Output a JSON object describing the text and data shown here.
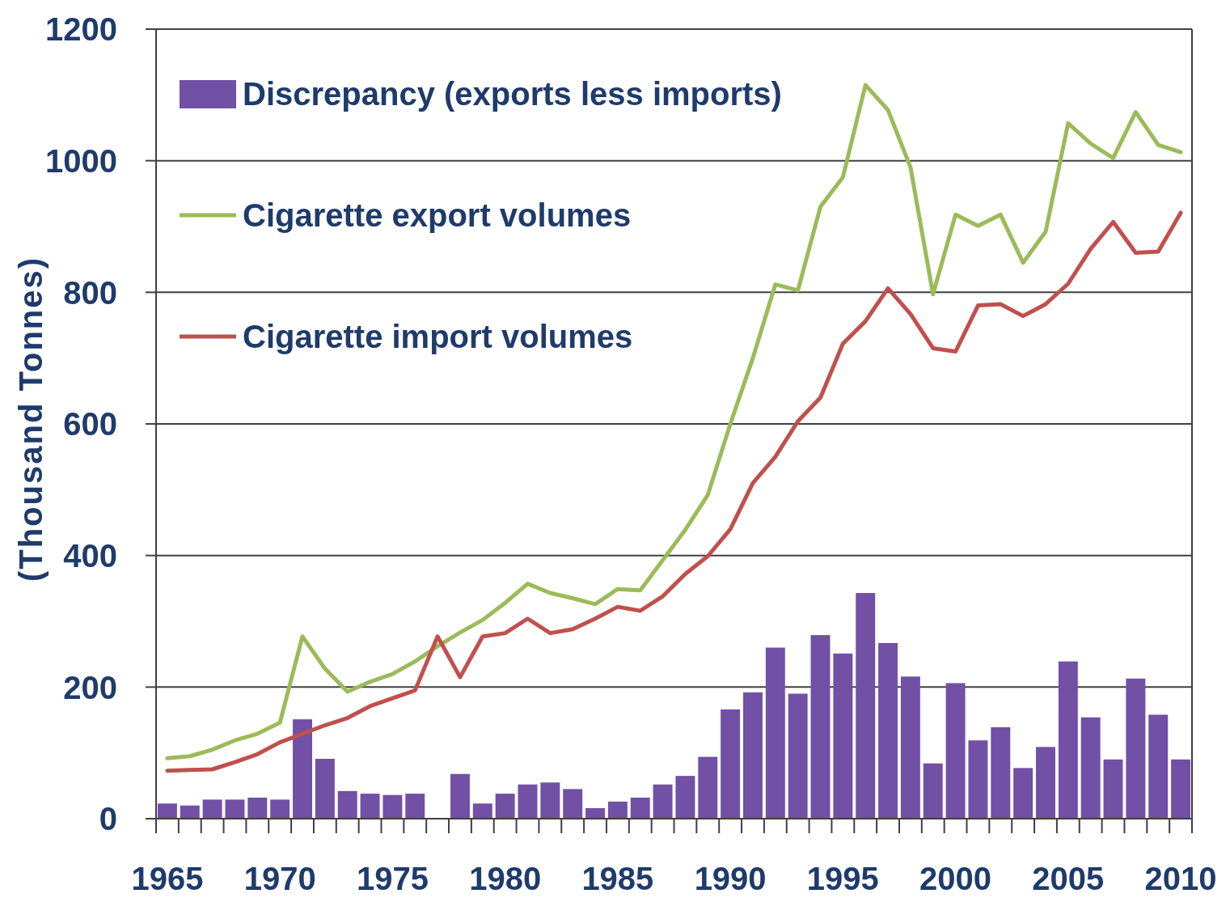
{
  "chart_data": {
    "type": "bar",
    "ylabel": "(Thousand Tonnes)",
    "categories": [
      "1965",
      null,
      null,
      null,
      null,
      "1970",
      null,
      null,
      null,
      null,
      "1975",
      null,
      null,
      null,
      null,
      "1980",
      null,
      null,
      null,
      null,
      "1985",
      null,
      null,
      null,
      null,
      "1990",
      null,
      null,
      null,
      null,
      "1995",
      null,
      null,
      null,
      null,
      "2000",
      null,
      null,
      null,
      null,
      "2005",
      null,
      null,
      null,
      null,
      "2010"
    ],
    "series": [
      {
        "name": "Discrepancy (exports less imports)",
        "color": "#7250a6",
        "values": [
          23,
          20,
          29,
          29,
          32,
          29,
          151,
          91,
          42,
          38,
          36,
          38,
          null,
          68,
          23,
          38,
          52,
          55,
          45,
          16,
          26,
          32,
          52,
          65,
          94,
          166,
          192,
          260,
          190,
          279,
          251,
          343,
          267,
          216,
          84,
          206,
          119,
          139,
          77,
          109,
          239,
          154,
          90,
          213,
          158,
          90
        ]
      },
      {
        "name": "Cigarette export volumes",
        "type": "line",
        "color": "#9bbb59",
        "values": [
          92,
          95,
          105,
          119,
          129,
          146,
          277,
          228,
          193,
          208,
          220,
          239,
          262,
          283,
          302,
          328,
          357,
          343,
          335,
          326,
          349,
          347,
          393,
          439,
          492,
          600,
          700,
          812,
          803,
          930,
          975,
          1115,
          1077,
          990,
          797,
          918,
          901,
          918,
          845,
          892,
          1057,
          1026,
          1004,
          1074,
          1024,
          1013
        ]
      },
      {
        "name": "Cigarette import volumes",
        "type": "line",
        "color": "#c0504d",
        "values": [
          73,
          74,
          75,
          86,
          98,
          116,
          129,
          142,
          153,
          171,
          183,
          195,
          277,
          215,
          277,
          282,
          304,
          282,
          288,
          304,
          322,
          316,
          338,
          372,
          399,
          440,
          510,
          550,
          604,
          640,
          722,
          756,
          806,
          767,
          715,
          710,
          780,
          782,
          764,
          782,
          813,
          866,
          907,
          860,
          862,
          921
        ]
      }
    ],
    "ylim": [
      0,
      1200
    ],
    "yticks": [
      0,
      200,
      400,
      600,
      800,
      1000,
      1200
    ],
    "grid": "y",
    "legend": "top left"
  }
}
